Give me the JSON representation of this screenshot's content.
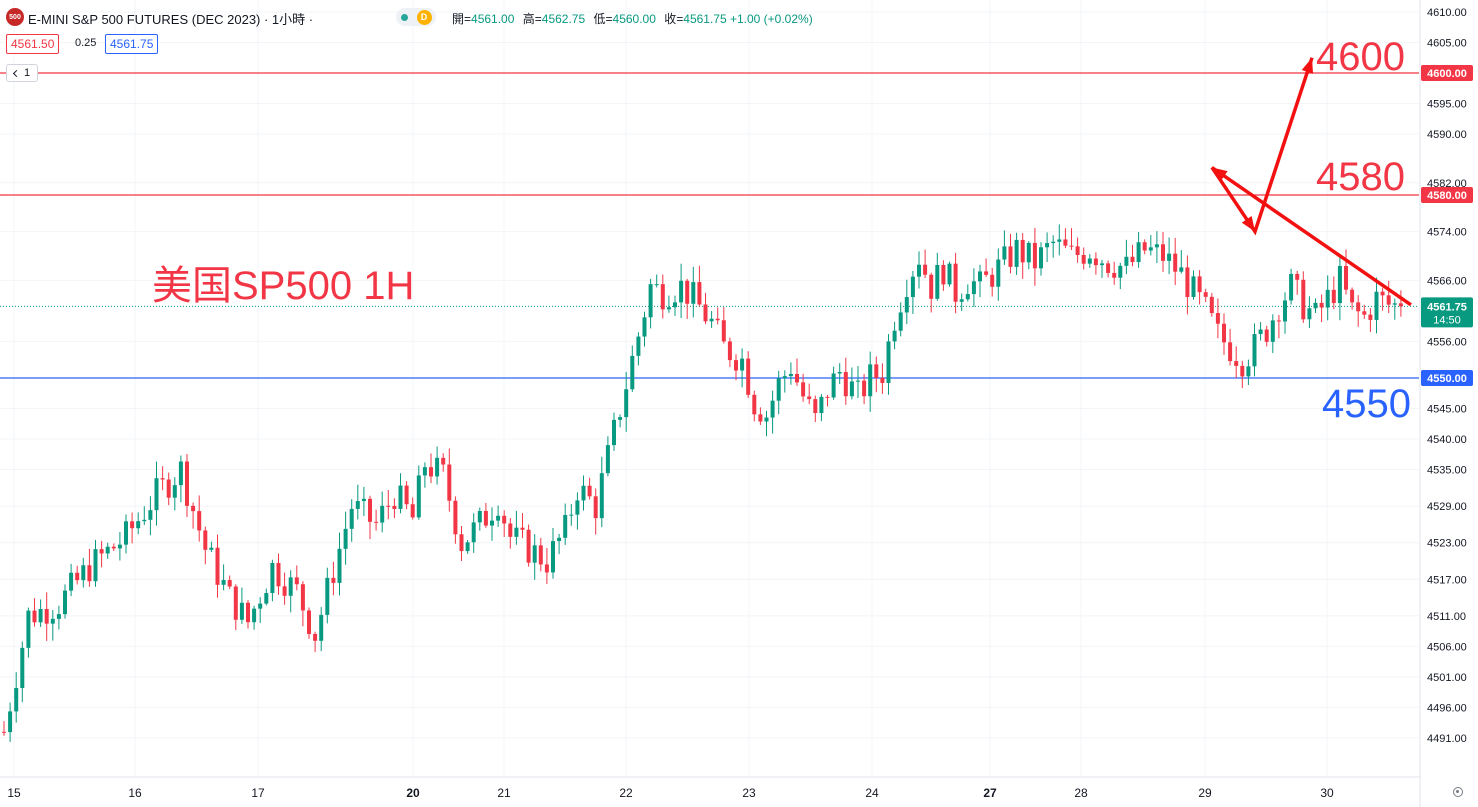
{
  "header": {
    "symbol_badge": "500",
    "symbol_title": "E-MINI S&P 500 FUTURES (DEC 2023) · 1小時 ·",
    "status_badge": "D",
    "ohlc": [
      {
        "label": "開=",
        "value": "4561.00"
      },
      {
        "label": "高=",
        "value": "4562.75"
      },
      {
        "label": "低=",
        "value": "4560.00"
      },
      {
        "label": "收=",
        "value": "4561.75 +1.00 (+0.02%)"
      }
    ],
    "bid": "4561.50",
    "spread": "0.25",
    "ask": "4561.75",
    "collapse_count": "1"
  },
  "annotations": {
    "title": "美国SP500 1H",
    "level_high": "4600",
    "level_mid": "4580",
    "level_low": "4550"
  },
  "colors": {
    "up": "#089981",
    "down": "#f23645",
    "resistance": "#f23645",
    "support": "#2962ff",
    "arrow": "#f21010"
  },
  "chart_data": {
    "type": "candlestick",
    "title": "E-MINI S&P 500 FUTURES (DEC 2023)",
    "timeframe": "1小時",
    "y_axis": {
      "range": [
        4487.5,
        4612.5
      ],
      "ticks": [
        "4610.00",
        "4605.00",
        "4595.00",
        "4590.00",
        "4582.00",
        "4574.00",
        "4566.00",
        "4556.00",
        "4545.00",
        "4540.00",
        "4535.00",
        "4529.00",
        "4523.00",
        "4517.00",
        "4511.00",
        "4506.00",
        "4501.00",
        "4496.00",
        "4491.00"
      ]
    },
    "x_axis": {
      "ticks": [
        {
          "label": "15",
          "bold": false
        },
        {
          "label": "16",
          "bold": false
        },
        {
          "label": "17",
          "bold": false
        },
        {
          "label": "20",
          "bold": true
        },
        {
          "label": "21",
          "bold": false
        },
        {
          "label": "22",
          "bold": false
        },
        {
          "label": "23",
          "bold": false
        },
        {
          "label": "24",
          "bold": false
        },
        {
          "label": "27",
          "bold": true
        },
        {
          "label": "28",
          "bold": false
        },
        {
          "label": "29",
          "bold": false
        },
        {
          "label": "30",
          "bold": false
        }
      ]
    },
    "price_lines": [
      {
        "label": "4600.00",
        "value": 4600.0,
        "color": "#f23645"
      },
      {
        "label": "4580.00",
        "value": 4580.0,
        "color": "#f23645"
      },
      {
        "label": "4550.00",
        "value": 4550.0,
        "color": "#2962ff"
      }
    ],
    "last_price": {
      "label": "4561.75",
      "countdown": "14:50",
      "value": 4561.75
    },
    "path": [
      {
        "t": 0,
        "p": 4492
      },
      {
        "t": 4,
        "p": 4511
      },
      {
        "t": 9,
        "p": 4513
      },
      {
        "t": 14,
        "p": 4519
      },
      {
        "t": 20,
        "p": 4524
      },
      {
        "t": 25,
        "p": 4531
      },
      {
        "t": 29,
        "p": 4535
      },
      {
        "t": 33,
        "p": 4522
      },
      {
        "t": 37,
        "p": 4514
      },
      {
        "t": 40,
        "p": 4510
      },
      {
        "t": 44,
        "p": 4519
      },
      {
        "t": 48,
        "p": 4515
      },
      {
        "t": 51,
        "p": 4508
      },
      {
        "t": 55,
        "p": 4522
      },
      {
        "t": 57,
        "p": 4529
      },
      {
        "t": 61,
        "p": 4526
      },
      {
        "t": 64,
        "p": 4531
      },
      {
        "t": 67,
        "p": 4527
      },
      {
        "t": 69,
        "p": 4536
      },
      {
        "t": 72,
        "p": 4534
      },
      {
        "t": 75,
        "p": 4523
      },
      {
        "t": 78,
        "p": 4526
      },
      {
        "t": 81,
        "p": 4530
      },
      {
        "t": 83,
        "p": 4524
      },
      {
        "t": 86,
        "p": 4522
      },
      {
        "t": 89,
        "p": 4520
      },
      {
        "t": 92,
        "p": 4525
      },
      {
        "t": 94,
        "p": 4532
      },
      {
        "t": 97,
        "p": 4529
      },
      {
        "t": 100,
        "p": 4541
      },
      {
        "t": 102,
        "p": 4549
      },
      {
        "t": 104,
        "p": 4557
      },
      {
        "t": 106,
        "p": 4565
      },
      {
        "t": 108,
        "p": 4564
      },
      {
        "t": 111,
        "p": 4565
      },
      {
        "t": 113,
        "p": 4563
      },
      {
        "t": 116,
        "p": 4559
      },
      {
        "t": 118,
        "p": 4555
      },
      {
        "t": 121,
        "p": 4553
      },
      {
        "t": 123,
        "p": 4546
      },
      {
        "t": 125,
        "p": 4544
      },
      {
        "t": 127,
        "p": 4549
      },
      {
        "t": 129,
        "p": 4552
      },
      {
        "t": 131,
        "p": 4547
      },
      {
        "t": 133,
        "p": 4543
      },
      {
        "t": 135,
        "p": 4548
      },
      {
        "t": 137,
        "p": 4551
      },
      {
        "t": 140,
        "p": 4547
      },
      {
        "t": 142,
        "p": 4550
      },
      {
        "t": 144,
        "p": 4551
      },
      {
        "t": 146,
        "p": 4560
      },
      {
        "t": 148,
        "p": 4566
      },
      {
        "t": 150,
        "p": 4570
      },
      {
        "t": 152,
        "p": 4565
      },
      {
        "t": 154,
        "p": 4568
      },
      {
        "t": 156,
        "p": 4564
      },
      {
        "t": 158,
        "p": 4566
      },
      {
        "t": 160,
        "p": 4565
      },
      {
        "t": 163,
        "p": 4568
      },
      {
        "t": 166,
        "p": 4571
      },
      {
        "t": 169,
        "p": 4569
      },
      {
        "t": 172,
        "p": 4572
      },
      {
        "t": 175,
        "p": 4570
      },
      {
        "t": 178,
        "p": 4571
      },
      {
        "t": 181,
        "p": 4569
      },
      {
        "t": 184,
        "p": 4568
      },
      {
        "t": 187,
        "p": 4571
      },
      {
        "t": 190,
        "p": 4570
      },
      {
        "t": 193,
        "p": 4567
      },
      {
        "t": 195,
        "p": 4564
      },
      {
        "t": 197,
        "p": 4561
      },
      {
        "t": 199,
        "p": 4557
      },
      {
        "t": 201,
        "p": 4555
      },
      {
        "t": 203,
        "p": 4553
      },
      {
        "t": 205,
        "p": 4555
      },
      {
        "t": 207,
        "p": 4558
      },
      {
        "t": 209,
        "p": 4562
      },
      {
        "t": 211,
        "p": 4565
      },
      {
        "t": 213,
        "p": 4562
      },
      {
        "t": 215,
        "p": 4560
      },
      {
        "t": 217,
        "p": 4563
      },
      {
        "t": 219,
        "p": 4566
      },
      {
        "t": 221,
        "p": 4561
      },
      {
        "t": 223,
        "p": 4560
      },
      {
        "t": 225,
        "p": 4563
      },
      {
        "t": 227,
        "p": 4562
      },
      {
        "t": 229,
        "p": 4561.75
      }
    ]
  }
}
